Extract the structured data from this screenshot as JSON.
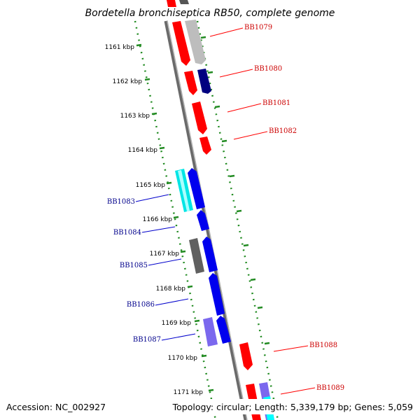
{
  "title": "Bordetella bronchiseptica RB50, complete genome",
  "accession": "Accession: NC_002927",
  "topology": "Topology: circular; Length: 5,339,179 bp; Genes: 5,059",
  "ticks": [
    "1161 kbp",
    "1162 kbp",
    "1163 kbp",
    "1164 kbp",
    "1165 kbp",
    "1166 kbp",
    "1167 kbp",
    "1168 kbp",
    "1169 kbp",
    "1170 kbp",
    "1171 kbp"
  ],
  "colors": {
    "forward_label": "#cc0000",
    "reverse_label": "#00008b",
    "tick_dots": "#228b22",
    "backbone": "#808080"
  },
  "genes_right": [
    "BB1079",
    "BB1080",
    "BB1081",
    "BB1082",
    "BB1088",
    "BB1089"
  ],
  "genes_left": [
    "BB1083",
    "BB1084",
    "BB1085",
    "BB1086",
    "BB1087"
  ]
}
